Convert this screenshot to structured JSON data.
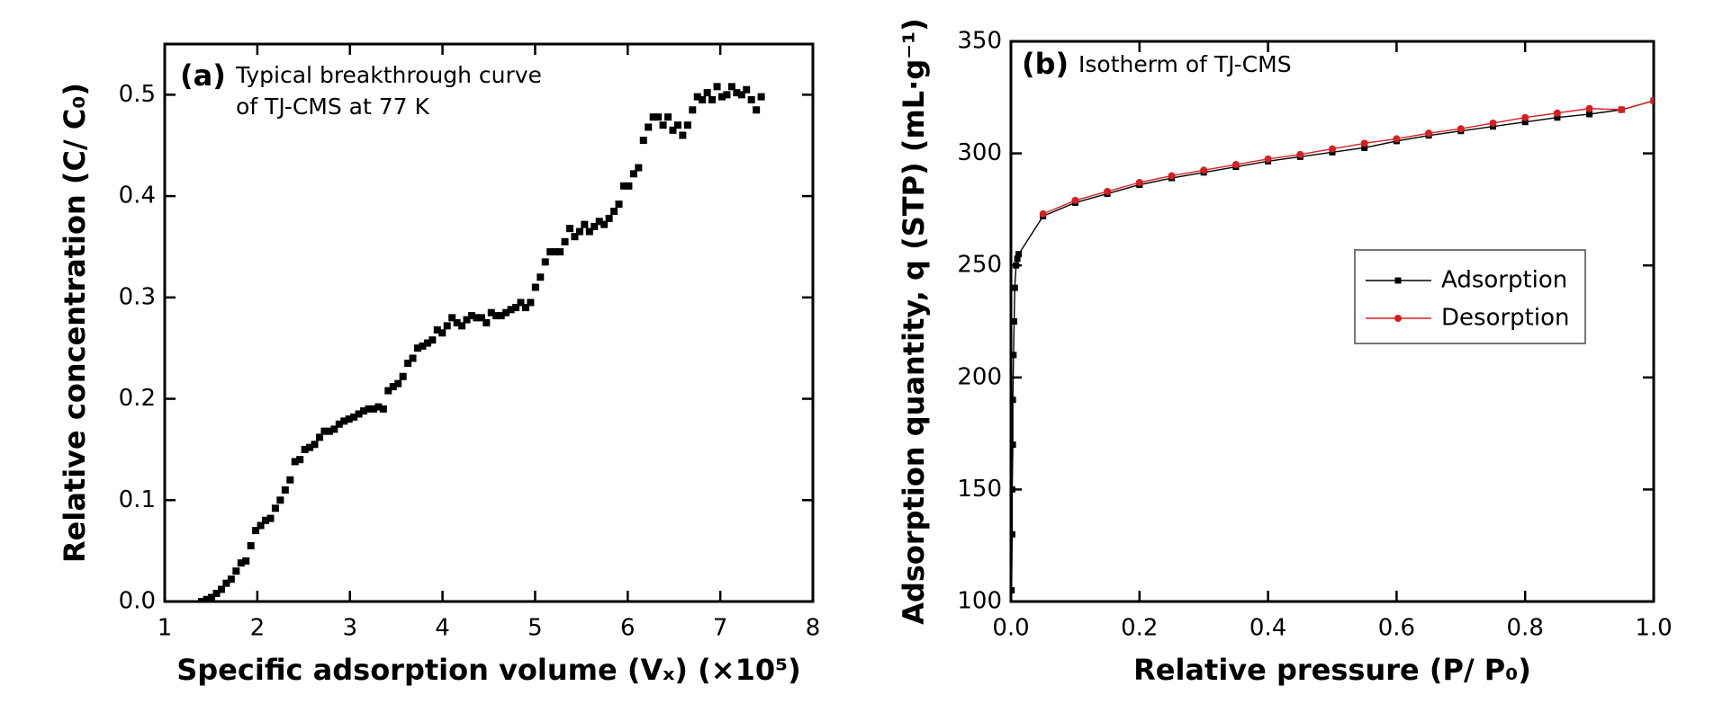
{
  "chart_data": [
    {
      "type": "scatter",
      "annotations": [
        "(a)",
        "Typical breakthrough curve",
        "of TJ-CMS at 77 K"
      ],
      "xlabel": "Specific adsorption volume (Vₓ) (×10⁵)",
      "ylabel": "Relative concentration (C/ C₀)",
      "xlim": [
        1,
        8
      ],
      "ylim": [
        0,
        0.55
      ],
      "xticks": [
        1,
        2,
        3,
        4,
        5,
        6,
        7,
        8
      ],
      "yticks": [
        {
          "value": 0,
          "label": "0.0"
        },
        0.1,
        0.2,
        0.3,
        0.4,
        0.5
      ],
      "series": [
        {
          "color": "#000000",
          "marker": "square",
          "x": [
            1.4,
            1.453,
            1.506,
            1.559,
            1.612,
            1.665,
            1.718,
            1.771,
            1.824,
            1.877,
            1.93,
            1.983,
            2.036,
            2.089,
            2.142,
            2.195,
            2.248,
            2.301,
            2.354,
            2.407,
            2.46,
            2.513,
            2.566,
            2.619,
            2.672,
            2.725,
            2.778,
            2.831,
            2.884,
            2.937,
            2.99,
            3.043,
            3.096,
            3.149,
            3.202,
            3.255,
            3.308,
            3.361,
            3.414,
            3.467,
            3.52,
            3.573,
            3.626,
            3.679,
            3.732,
            3.785,
            3.838,
            3.891,
            3.944,
            3.997,
            4.05,
            4.103,
            4.156,
            4.209,
            4.262,
            4.315,
            4.368,
            4.421,
            4.474,
            4.527,
            4.58,
            4.633,
            4.686,
            4.739,
            4.792,
            4.845,
            4.898,
            4.951,
            5.004,
            5.057,
            5.11,
            5.163,
            5.216,
            5.269,
            5.322,
            5.375,
            5.428,
            5.481,
            5.534,
            5.587,
            5.64,
            5.693,
            5.746,
            5.799,
            5.852,
            5.905,
            5.958,
            6.011,
            6.064,
            6.117,
            6.17,
            6.223,
            6.276,
            6.329,
            6.382,
            6.435,
            6.488,
            6.541,
            6.594,
            6.647,
            6.7,
            6.753,
            6.806,
            6.859,
            6.912,
            6.965,
            7.018,
            7.071,
            7.124,
            7.177,
            7.23,
            7.283,
            7.336,
            7.389,
            7.442
          ],
          "values": [
            0,
            0.002,
            0.004,
            0.008,
            0.012,
            0.018,
            0.022,
            0.03,
            0.038,
            0.04,
            0.055,
            0.07,
            0.075,
            0.08,
            0.082,
            0.092,
            0.1,
            0.11,
            0.12,
            0.138,
            0.14,
            0.15,
            0.152,
            0.155,
            0.162,
            0.168,
            0.168,
            0.17,
            0.175,
            0.178,
            0.18,
            0.182,
            0.185,
            0.188,
            0.19,
            0.19,
            0.192,
            0.19,
            0.208,
            0.212,
            0.215,
            0.222,
            0.235,
            0.24,
            0.25,
            0.252,
            0.255,
            0.258,
            0.268,
            0.265,
            0.272,
            0.28,
            0.275,
            0.272,
            0.278,
            0.282,
            0.28,
            0.28,
            0.275,
            0.285,
            0.282,
            0.282,
            0.285,
            0.288,
            0.29,
            0.295,
            0.29,
            0.295,
            0.31,
            0.32,
            0.335,
            0.345,
            0.345,
            0.345,
            0.355,
            0.368,
            0.36,
            0.365,
            0.372,
            0.365,
            0.37,
            0.375,
            0.372,
            0.378,
            0.385,
            0.392,
            0.41,
            0.41,
            0.422,
            0.428,
            0.455,
            0.468,
            0.478,
            0.478,
            0.47,
            0.478,
            0.465,
            0.47,
            0.46,
            0.47,
            0.485,
            0.498,
            0.495,
            0.502,
            0.495,
            0.508,
            0.498,
            0.5,
            0.508,
            0.502,
            0.5,
            0.505,
            0.495,
            0.485,
            0.498
          ]
        }
      ]
    },
    {
      "type": "line",
      "annotations": [
        "(b)",
        "Isotherm of TJ-CMS"
      ],
      "xlabel": "Relative pressure (P/ P₀)",
      "ylabel": "Adsorption quantity, q (STP) (mL·g⁻¹)",
      "xlim": [
        0,
        1
      ],
      "ylim": [
        100,
        350
      ],
      "xticks": [
        {
          "value": 0,
          "label": "0.0"
        },
        0.2,
        0.4,
        0.6,
        0.8,
        {
          "value": 1,
          "label": "1.0"
        }
      ],
      "yticks": [
        100,
        150,
        200,
        250,
        300,
        350
      ],
      "legend": "center-right",
      "series": [
        {
          "name": "Adsorption",
          "color": "#000000",
          "marker": "square",
          "x": [
            0.001,
            0.002,
            0.002,
            0.003,
            0.003,
            0.004,
            0.005,
            0.006,
            0.008,
            0.01,
            0.012,
            0.05,
            0.1,
            0.15,
            0.2,
            0.25,
            0.3,
            0.35,
            0.4,
            0.45,
            0.5,
            0.55,
            0.6,
            0.65,
            0.7,
            0.75,
            0.8,
            0.85,
            0.9,
            0.95,
            1.0
          ],
          "values": [
            105,
            130,
            150,
            170,
            190,
            210,
            225,
            240,
            250,
            253,
            255,
            272,
            278,
            282,
            286,
            289,
            291.5,
            294,
            296.5,
            298.5,
            300.5,
            302.5,
            305.5,
            308,
            310,
            312,
            314,
            316,
            317.5,
            319.5,
            323.5
          ]
        },
        {
          "name": "Desorption",
          "color": "#d62020",
          "marker": "circle",
          "x": [
            1.0,
            0.95,
            0.9,
            0.85,
            0.8,
            0.75,
            0.7,
            0.65,
            0.6,
            0.55,
            0.5,
            0.45,
            0.4,
            0.35,
            0.3,
            0.25,
            0.2,
            0.15,
            0.1,
            0.05
          ],
          "values": [
            323.5,
            319.5,
            320,
            318,
            316,
            313.5,
            311,
            309,
            306.5,
            304.5,
            302,
            299.5,
            297.5,
            295,
            292.5,
            290,
            287,
            283,
            279,
            273
          ]
        }
      ]
    }
  ]
}
